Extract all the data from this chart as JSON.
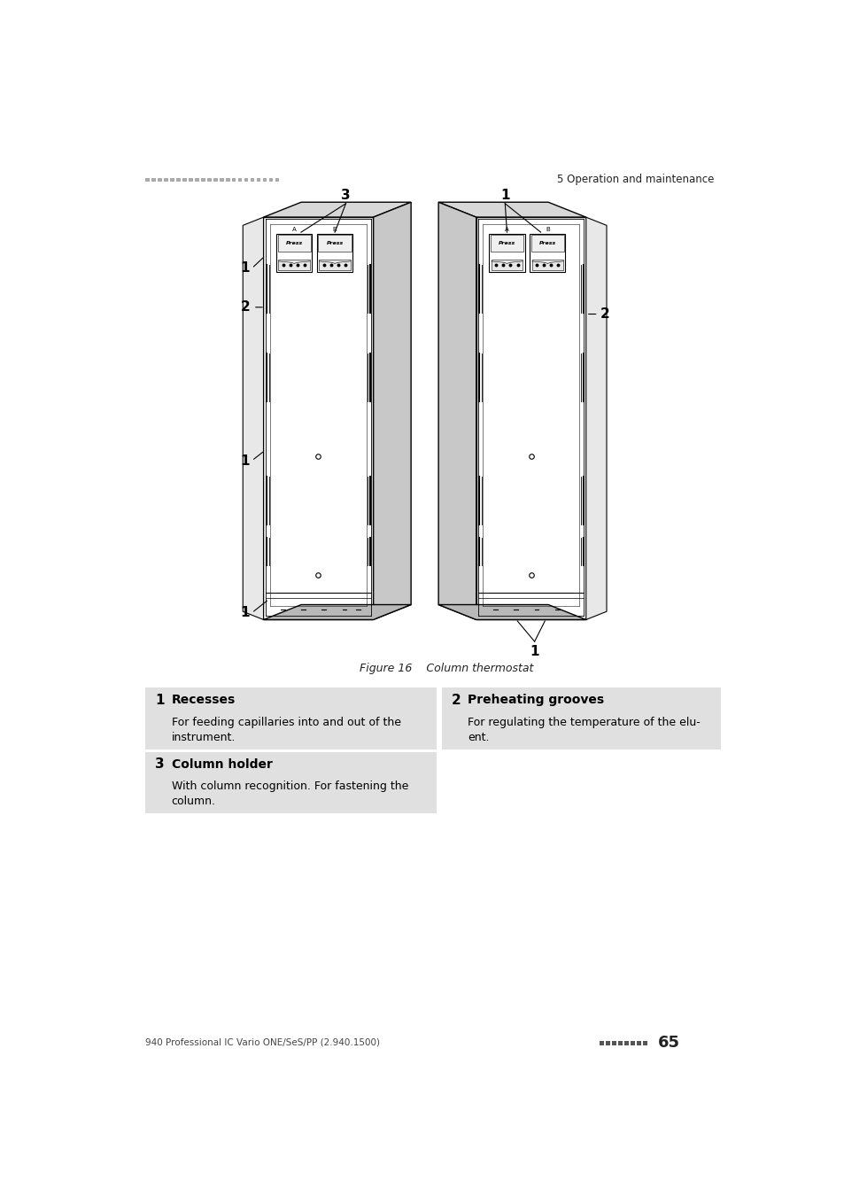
{
  "bg_color": "#ffffff",
  "header_left_text": "= = = = = = = = = = = = = = = = = = = = = =",
  "header_right_text": "5 Operation and maintenance",
  "figure_caption": "Figure 16    Column thermostat",
  "footer_left_text": "940 Professional IC Vario ONE/SeS/PP (2.940.1500)",
  "footer_right_text": "65",
  "item1_num": "1",
  "item1_title": "Recesses",
  "item1_desc": "For feeding capillaries into and out of the\ninstrument.",
  "item2_num": "2",
  "item2_title": "Preheating grooves",
  "item2_desc": "For regulating the temperature of the elu-\nent.",
  "item3_num": "3",
  "item3_title": "Column holder",
  "item3_desc": "With column recognition. For fastening the\ncolumn.",
  "table_bg": "#e0e0e0",
  "lw_cabinet": 1.0,
  "lw_detail": 0.6
}
